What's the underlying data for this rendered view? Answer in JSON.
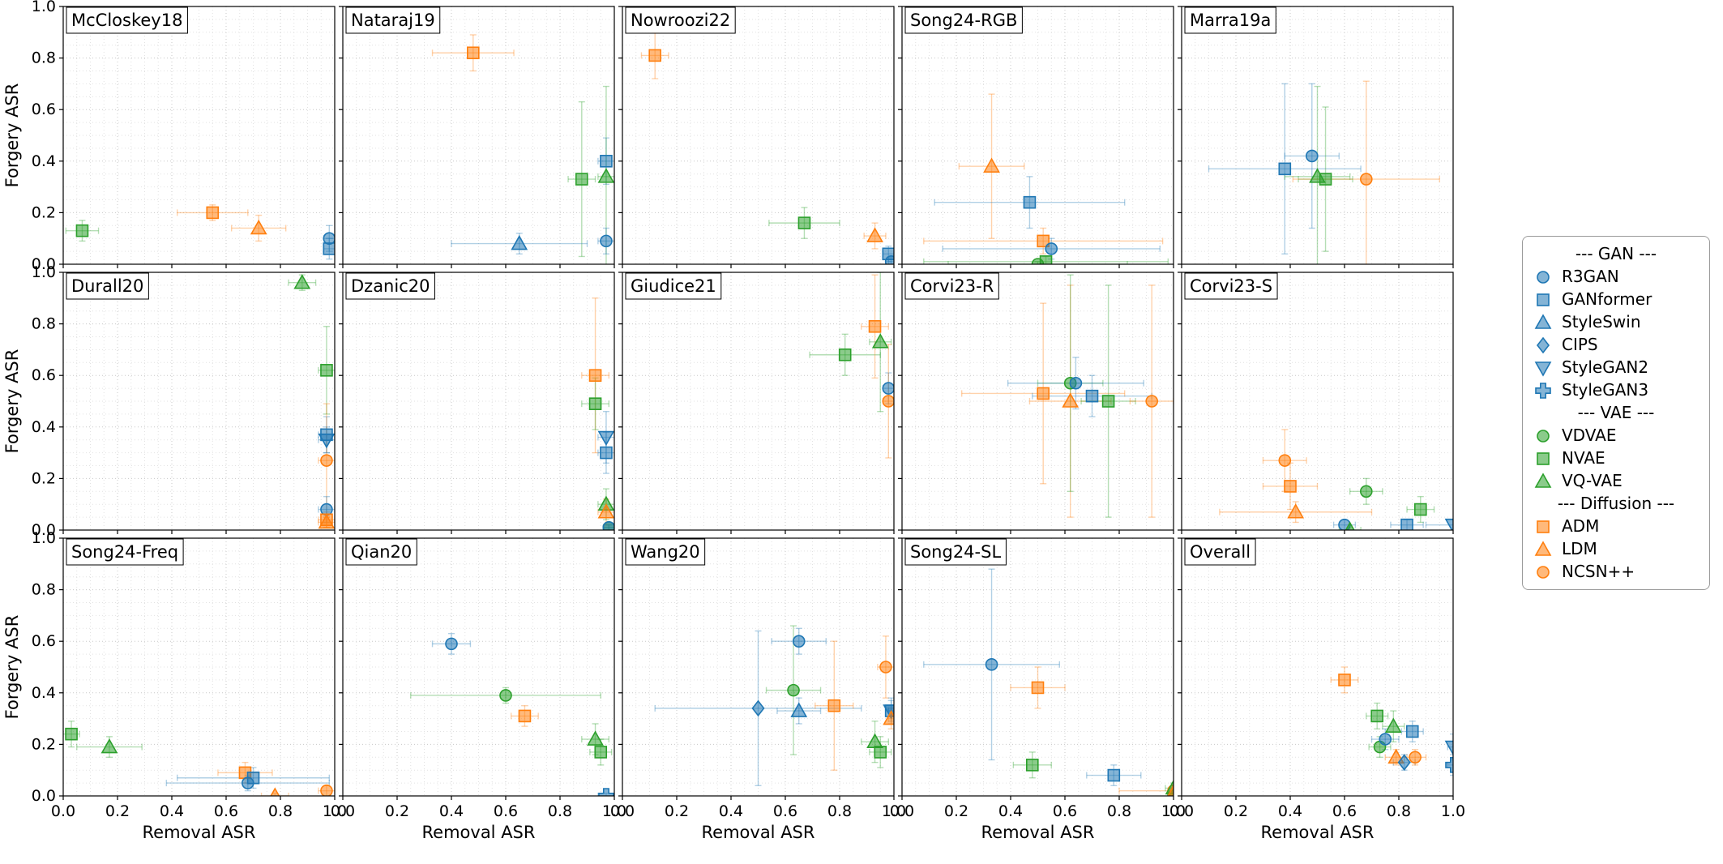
{
  "figure": {
    "xlabel": "Removal ASR",
    "ylabel": "Forgery ASR",
    "xticks": [
      "0.0",
      "0.2",
      "0.4",
      "0.6",
      "0.8",
      "1.0"
    ],
    "yticks": [
      "0.0",
      "0.2",
      "0.4",
      "0.6",
      "0.8",
      "1.0"
    ]
  },
  "colors": {
    "gan": "#1f77b4",
    "vae": "#2ca02c",
    "diffusion": "#ff7f0e"
  },
  "series_styles": {
    "R3GAN": {
      "marker": "circle",
      "group": "gan"
    },
    "GANformer": {
      "marker": "square",
      "group": "gan"
    },
    "StyleSwin": {
      "marker": "triangle-up",
      "group": "gan"
    },
    "CIPS": {
      "marker": "diamond",
      "group": "gan"
    },
    "StyleGAN2": {
      "marker": "triangle-down",
      "group": "gan"
    },
    "StyleGAN3": {
      "marker": "plus",
      "group": "gan"
    },
    "VDVAE": {
      "marker": "circle",
      "group": "vae"
    },
    "NVAE": {
      "marker": "square",
      "group": "vae"
    },
    "VQ-VAE": {
      "marker": "triangle-up",
      "group": "vae"
    },
    "ADM": {
      "marker": "square",
      "group": "diffusion"
    },
    "LDM": {
      "marker": "triangle-up",
      "group": "diffusion"
    },
    "NCSN++": {
      "marker": "circle",
      "group": "diffusion"
    }
  },
  "legend": {
    "groups": [
      {
        "header": "--- GAN ---",
        "items": [
          "R3GAN",
          "GANformer",
          "StyleSwin",
          "CIPS",
          "StyleGAN2",
          "StyleGAN3"
        ]
      },
      {
        "header": "--- VAE ---",
        "items": [
          "VDVAE",
          "NVAE",
          "VQ-VAE"
        ]
      },
      {
        "header": "--- Diffusion ---",
        "items": [
          "ADM",
          "LDM",
          "NCSN++"
        ]
      }
    ]
  },
  "chart_data": {
    "type": "scatter",
    "xlabel": "Removal ASR",
    "ylabel": "Forgery ASR",
    "xlim": [
      0,
      1
    ],
    "ylim": [
      0,
      1
    ],
    "grid": true,
    "panels": [
      {
        "title": "McCloskey18",
        "points": [
          {
            "series": "NVAE",
            "x": 0.07,
            "y": 0.13,
            "xerr": 0.06,
            "yerr": 0.04
          },
          {
            "series": "ADM",
            "x": 0.55,
            "y": 0.2,
            "xerr": 0.13,
            "yerr": 0.03
          },
          {
            "series": "LDM",
            "x": 0.72,
            "y": 0.14,
            "xerr": 0.1,
            "yerr": 0.05
          },
          {
            "series": "R3GAN",
            "x": 0.98,
            "y": 0.1,
            "xerr": 0.02,
            "yerr": 0.05
          },
          {
            "series": "GANformer",
            "x": 0.98,
            "y": 0.06,
            "xerr": 0.02,
            "yerr": 0.04
          }
        ]
      },
      {
        "title": "Nataraj19",
        "points": [
          {
            "series": "ADM",
            "x": 0.48,
            "y": 0.82,
            "xerr": 0.15,
            "yerr": 0.07
          },
          {
            "series": "NVAE",
            "x": 0.88,
            "y": 0.33,
            "xerr": 0.05,
            "yerr": 0.3
          },
          {
            "series": "GANformer",
            "x": 0.97,
            "y": 0.4,
            "xerr": 0.03,
            "yerr": 0.09
          },
          {
            "series": "VQ-VAE",
            "x": 0.97,
            "y": 0.34,
            "xerr": 0.03,
            "yerr": 0.35
          },
          {
            "series": "StyleSwin",
            "x": 0.65,
            "y": 0.08,
            "xerr": 0.25,
            "yerr": 0.04
          },
          {
            "series": "R3GAN",
            "x": 0.97,
            "y": 0.09,
            "xerr": 0.03,
            "yerr": 0.05
          }
        ]
      },
      {
        "title": "Nowroozi22",
        "points": [
          {
            "series": "ADM",
            "x": 0.12,
            "y": 0.81,
            "xerr": 0.05,
            "yerr": 0.09
          },
          {
            "series": "NVAE",
            "x": 0.67,
            "y": 0.16,
            "xerr": 0.13,
            "yerr": 0.06
          },
          {
            "series": "LDM",
            "x": 0.93,
            "y": 0.11,
            "xerr": 0.04,
            "yerr": 0.05
          },
          {
            "series": "GANformer",
            "x": 0.98,
            "y": 0.04,
            "xerr": 0.02,
            "yerr": 0.03
          },
          {
            "series": "R3GAN",
            "x": 0.99,
            "y": 0.01,
            "xerr": 0.01,
            "yerr": 0.01
          }
        ]
      },
      {
        "title": "Song24-RGB",
        "points": [
          {
            "series": "LDM",
            "x": 0.33,
            "y": 0.38,
            "xerr": 0.12,
            "yerr": 0.28
          },
          {
            "series": "GANformer",
            "x": 0.47,
            "y": 0.24,
            "xerr": 0.35,
            "yerr": 0.1
          },
          {
            "series": "ADM",
            "x": 0.52,
            "y": 0.09,
            "xerr": 0.44,
            "yerr": 0.05
          },
          {
            "series": "R3GAN",
            "x": 0.55,
            "y": 0.06,
            "xerr": 0.4,
            "yerr": 0.04
          },
          {
            "series": "NVAE",
            "x": 0.53,
            "y": 0.01,
            "xerr": 0.45,
            "yerr": 0.02
          },
          {
            "series": "VDVAE",
            "x": 0.5,
            "y": 0.0,
            "xerr": 0.33,
            "yerr": 0.01
          }
        ]
      },
      {
        "title": "Marra19a",
        "points": [
          {
            "series": "GANformer",
            "x": 0.38,
            "y": 0.37,
            "xerr": 0.28,
            "yerr": 0.33
          },
          {
            "series": "R3GAN",
            "x": 0.48,
            "y": 0.42,
            "xerr": 0.1,
            "yerr": 0.28
          },
          {
            "series": "VQ-VAE",
            "x": 0.5,
            "y": 0.34,
            "xerr": 0.12,
            "yerr": 0.35
          },
          {
            "series": "NVAE",
            "x": 0.53,
            "y": 0.33,
            "xerr": 0.1,
            "yerr": 0.28
          },
          {
            "series": "NCSN++",
            "x": 0.68,
            "y": 0.33,
            "xerr": 0.27,
            "yerr": 0.38
          }
        ]
      },
      {
        "title": "Durall20",
        "points": [
          {
            "series": "VQ-VAE",
            "x": 0.88,
            "y": 0.96,
            "xerr": 0.05,
            "yerr": 0.03
          },
          {
            "series": "NVAE",
            "x": 0.97,
            "y": 0.62,
            "xerr": 0.03,
            "yerr": 0.17
          },
          {
            "series": "GANformer",
            "x": 0.97,
            "y": 0.37,
            "xerr": 0.03,
            "yerr": 0.07
          },
          {
            "series": "StyleGAN2",
            "x": 0.97,
            "y": 0.35,
            "xerr": 0.03,
            "yerr": 0.05
          },
          {
            "series": "NCSN++",
            "x": 0.97,
            "y": 0.27,
            "xerr": 0.03,
            "yerr": 0.22
          },
          {
            "series": "R3GAN",
            "x": 0.97,
            "y": 0.08,
            "xerr": 0.03,
            "yerr": 0.05
          },
          {
            "series": "ADM",
            "x": 0.97,
            "y": 0.04,
            "xerr": 0.03,
            "yerr": 0.03
          },
          {
            "series": "LDM",
            "x": 0.97,
            "y": 0.03,
            "xerr": 0.03,
            "yerr": 0.02
          }
        ]
      },
      {
        "title": "Dzanic20",
        "points": [
          {
            "series": "ADM",
            "x": 0.93,
            "y": 0.6,
            "xerr": 0.05,
            "yerr": 0.3
          },
          {
            "series": "NVAE",
            "x": 0.93,
            "y": 0.49,
            "xerr": 0.05,
            "yerr": 0.1
          },
          {
            "series": "StyleGAN2",
            "x": 0.97,
            "y": 0.36,
            "xerr": 0.03,
            "yerr": 0.1
          },
          {
            "series": "GANformer",
            "x": 0.97,
            "y": 0.3,
            "xerr": 0.03,
            "yerr": 0.08
          },
          {
            "series": "VQ-VAE",
            "x": 0.97,
            "y": 0.1,
            "xerr": 0.03,
            "yerr": 0.06
          },
          {
            "series": "LDM",
            "x": 0.97,
            "y": 0.07,
            "xerr": 0.03,
            "yerr": 0.05
          },
          {
            "series": "VDVAE",
            "x": 0.98,
            "y": 0.01,
            "xerr": 0.02,
            "yerr": 0.01
          },
          {
            "series": "R3GAN",
            "x": 0.98,
            "y": 0.01,
            "xerr": 0.02,
            "yerr": 0.01
          }
        ]
      },
      {
        "title": "Giudice21",
        "points": [
          {
            "series": "NVAE",
            "x": 0.82,
            "y": 0.68,
            "xerr": 0.13,
            "yerr": 0.08
          },
          {
            "series": "ADM",
            "x": 0.93,
            "y": 0.79,
            "xerr": 0.05,
            "yerr": 0.2
          },
          {
            "series": "VQ-VAE",
            "x": 0.95,
            "y": 0.73,
            "xerr": 0.04,
            "yerr": 0.27
          },
          {
            "series": "R3GAN",
            "x": 0.98,
            "y": 0.55,
            "xerr": 0.02,
            "yerr": 0.06
          },
          {
            "series": "NCSN++",
            "x": 0.98,
            "y": 0.5,
            "xerr": 0.02,
            "yerr": 0.22
          }
        ]
      },
      {
        "title": "Corvi23-R",
        "points": [
          {
            "series": "ADM",
            "x": 0.52,
            "y": 0.53,
            "xerr": 0.3,
            "yerr": 0.35
          },
          {
            "series": "LDM",
            "x": 0.62,
            "y": 0.5,
            "xerr": 0.15,
            "yerr": 0.45
          },
          {
            "series": "VDVAE",
            "x": 0.62,
            "y": 0.57,
            "xerr": 0.12,
            "yerr": 0.42
          },
          {
            "series": "R3GAN",
            "x": 0.64,
            "y": 0.57,
            "xerr": 0.25,
            "yerr": 0.1
          },
          {
            "series": "GANformer",
            "x": 0.7,
            "y": 0.52,
            "xerr": 0.22,
            "yerr": 0.08
          },
          {
            "series": "NVAE",
            "x": 0.76,
            "y": 0.5,
            "xerr": 0.1,
            "yerr": 0.45
          },
          {
            "series": "NCSN++",
            "x": 0.92,
            "y": 0.5,
            "xerr": 0.08,
            "yerr": 0.45
          }
        ]
      },
      {
        "title": "Corvi23-S",
        "points": [
          {
            "series": "NCSN++",
            "x": 0.38,
            "y": 0.27,
            "xerr": 0.08,
            "yerr": 0.12
          },
          {
            "series": "ADM",
            "x": 0.4,
            "y": 0.17,
            "xerr": 0.1,
            "yerr": 0.09
          },
          {
            "series": "LDM",
            "x": 0.42,
            "y": 0.07,
            "xerr": 0.28,
            "yerr": 0.04
          },
          {
            "series": "VDVAE",
            "x": 0.68,
            "y": 0.15,
            "xerr": 0.06,
            "yerr": 0.05
          },
          {
            "series": "R3GAN",
            "x": 0.6,
            "y": 0.02,
            "xerr": 0.04,
            "yerr": 0.02
          },
          {
            "series": "VQ-VAE",
            "x": 0.62,
            "y": 0.0,
            "xerr": 0.04,
            "yerr": 0.01
          },
          {
            "series": "GANformer",
            "x": 0.83,
            "y": 0.02,
            "xerr": 0.06,
            "yerr": 0.02
          },
          {
            "series": "NVAE",
            "x": 0.88,
            "y": 0.08,
            "xerr": 0.05,
            "yerr": 0.05
          },
          {
            "series": "StyleGAN2",
            "x": 1.0,
            "y": 0.02,
            "xerr": 0.1,
            "yerr": 0.02
          }
        ]
      },
      {
        "title": "Song24-Freq",
        "points": [
          {
            "series": "NVAE",
            "x": 0.03,
            "y": 0.24,
            "xerr": 0.03,
            "yerr": 0.05
          },
          {
            "series": "VQ-VAE",
            "x": 0.17,
            "y": 0.19,
            "xerr": 0.12,
            "yerr": 0.04
          },
          {
            "series": "ADM",
            "x": 0.67,
            "y": 0.09,
            "xerr": 0.1,
            "yerr": 0.04
          },
          {
            "series": "GANformer",
            "x": 0.7,
            "y": 0.07,
            "xerr": 0.28,
            "yerr": 0.04
          },
          {
            "series": "R3GAN",
            "x": 0.68,
            "y": 0.05,
            "xerr": 0.3,
            "yerr": 0.03
          },
          {
            "series": "LDM",
            "x": 0.78,
            "y": 0.0,
            "xerr": 0.05,
            "yerr": 0.01
          },
          {
            "series": "NCSN++",
            "x": 0.97,
            "y": 0.02,
            "xerr": 0.03,
            "yerr": 0.02
          }
        ]
      },
      {
        "title": "Qian20",
        "points": [
          {
            "series": "R3GAN",
            "x": 0.4,
            "y": 0.59,
            "xerr": 0.07,
            "yerr": 0.04
          },
          {
            "series": "VDVAE",
            "x": 0.6,
            "y": 0.39,
            "xerr": 0.35,
            "yerr": 0.03
          },
          {
            "series": "ADM",
            "x": 0.67,
            "y": 0.31,
            "xerr": 0.05,
            "yerr": 0.04
          },
          {
            "series": "VQ-VAE",
            "x": 0.93,
            "y": 0.22,
            "xerr": 0.05,
            "yerr": 0.06
          },
          {
            "series": "NVAE",
            "x": 0.95,
            "y": 0.17,
            "xerr": 0.04,
            "yerr": 0.05
          },
          {
            "series": "StyleGAN3",
            "x": 0.97,
            "y": 0.0,
            "xerr": 0.03,
            "yerr": 0.01
          }
        ]
      },
      {
        "title": "Wang20",
        "points": [
          {
            "series": "R3GAN",
            "x": 0.65,
            "y": 0.6,
            "xerr": 0.1,
            "yerr": 0.05
          },
          {
            "series": "VDVAE",
            "x": 0.63,
            "y": 0.41,
            "xerr": 0.1,
            "yerr": 0.25
          },
          {
            "series": "CIPS",
            "x": 0.5,
            "y": 0.34,
            "xerr": 0.38,
            "yerr": 0.3
          },
          {
            "series": "StyleSwin",
            "x": 0.65,
            "y": 0.33,
            "xerr": 0.08,
            "yerr": 0.05
          },
          {
            "series": "ADM",
            "x": 0.78,
            "y": 0.35,
            "xerr": 0.07,
            "yerr": 0.25
          },
          {
            "series": "NCSN++",
            "x": 0.97,
            "y": 0.5,
            "xerr": 0.03,
            "yerr": 0.12
          },
          {
            "series": "VQ-VAE",
            "x": 0.93,
            "y": 0.21,
            "xerr": 0.05,
            "yerr": 0.08
          },
          {
            "series": "NVAE",
            "x": 0.95,
            "y": 0.17,
            "xerr": 0.04,
            "yerr": 0.06
          },
          {
            "series": "GANformer",
            "x": 0.99,
            "y": 0.33,
            "xerr": 0.01,
            "yerr": 0.05
          },
          {
            "series": "StyleGAN2",
            "x": 0.99,
            "y": 0.33,
            "xerr": 0.01,
            "yerr": 0.04
          },
          {
            "series": "LDM",
            "x": 0.99,
            "y": 0.3,
            "xerr": 0.01,
            "yerr": 0.04
          }
        ]
      },
      {
        "title": "Song24-SL",
        "points": [
          {
            "series": "R3GAN",
            "x": 0.33,
            "y": 0.51,
            "xerr": 0.25,
            "yerr": 0.37
          },
          {
            "series": "ADM",
            "x": 0.5,
            "y": 0.42,
            "xerr": 0.1,
            "yerr": 0.08
          },
          {
            "series": "NVAE",
            "x": 0.48,
            "y": 0.12,
            "xerr": 0.07,
            "yerr": 0.05
          },
          {
            "series": "GANformer",
            "x": 0.78,
            "y": 0.08,
            "xerr": 0.1,
            "yerr": 0.04
          },
          {
            "series": "NCSN++",
            "x": 1.0,
            "y": 0.02,
            "xerr": 0.2,
            "yerr": 0.02
          },
          {
            "series": "VQ-VAE",
            "x": 1.0,
            "y": 0.03,
            "xerr": 0.03,
            "yerr": 0.02
          },
          {
            "series": "VDVAE",
            "x": 1.0,
            "y": 0.0,
            "xerr": 0.02,
            "yerr": 0.01
          },
          {
            "series": "LDM",
            "x": 1.0,
            "y": 0.01,
            "xerr": 0.02,
            "yerr": 0.01
          }
        ]
      },
      {
        "title": "Overall",
        "points": [
          {
            "series": "ADM",
            "x": 0.6,
            "y": 0.45,
            "xerr": 0.05,
            "yerr": 0.05
          },
          {
            "series": "NVAE",
            "x": 0.72,
            "y": 0.31,
            "xerr": 0.04,
            "yerr": 0.05
          },
          {
            "series": "VQ-VAE",
            "x": 0.78,
            "y": 0.27,
            "xerr": 0.04,
            "yerr": 0.06
          },
          {
            "series": "VDVAE",
            "x": 0.73,
            "y": 0.19,
            "xerr": 0.04,
            "yerr": 0.04
          },
          {
            "series": "R3GAN",
            "x": 0.75,
            "y": 0.22,
            "xerr": 0.05,
            "yerr": 0.04
          },
          {
            "series": "GANformer",
            "x": 0.85,
            "y": 0.25,
            "xerr": 0.04,
            "yerr": 0.04
          },
          {
            "series": "LDM",
            "x": 0.79,
            "y": 0.15,
            "xerr": 0.04,
            "yerr": 0.03
          },
          {
            "series": "CIPS",
            "x": 0.82,
            "y": 0.13,
            "xerr": 0.04,
            "yerr": 0.03
          },
          {
            "series": "NCSN++",
            "x": 0.86,
            "y": 0.15,
            "xerr": 0.04,
            "yerr": 0.03
          },
          {
            "series": "StyleGAN2",
            "x": 1.0,
            "y": 0.19,
            "xerr": 0.02,
            "yerr": 0.05
          },
          {
            "series": "StyleGAN3",
            "x": 1.0,
            "y": 0.12,
            "xerr": 0.02,
            "yerr": 0.04
          }
        ]
      }
    ]
  }
}
